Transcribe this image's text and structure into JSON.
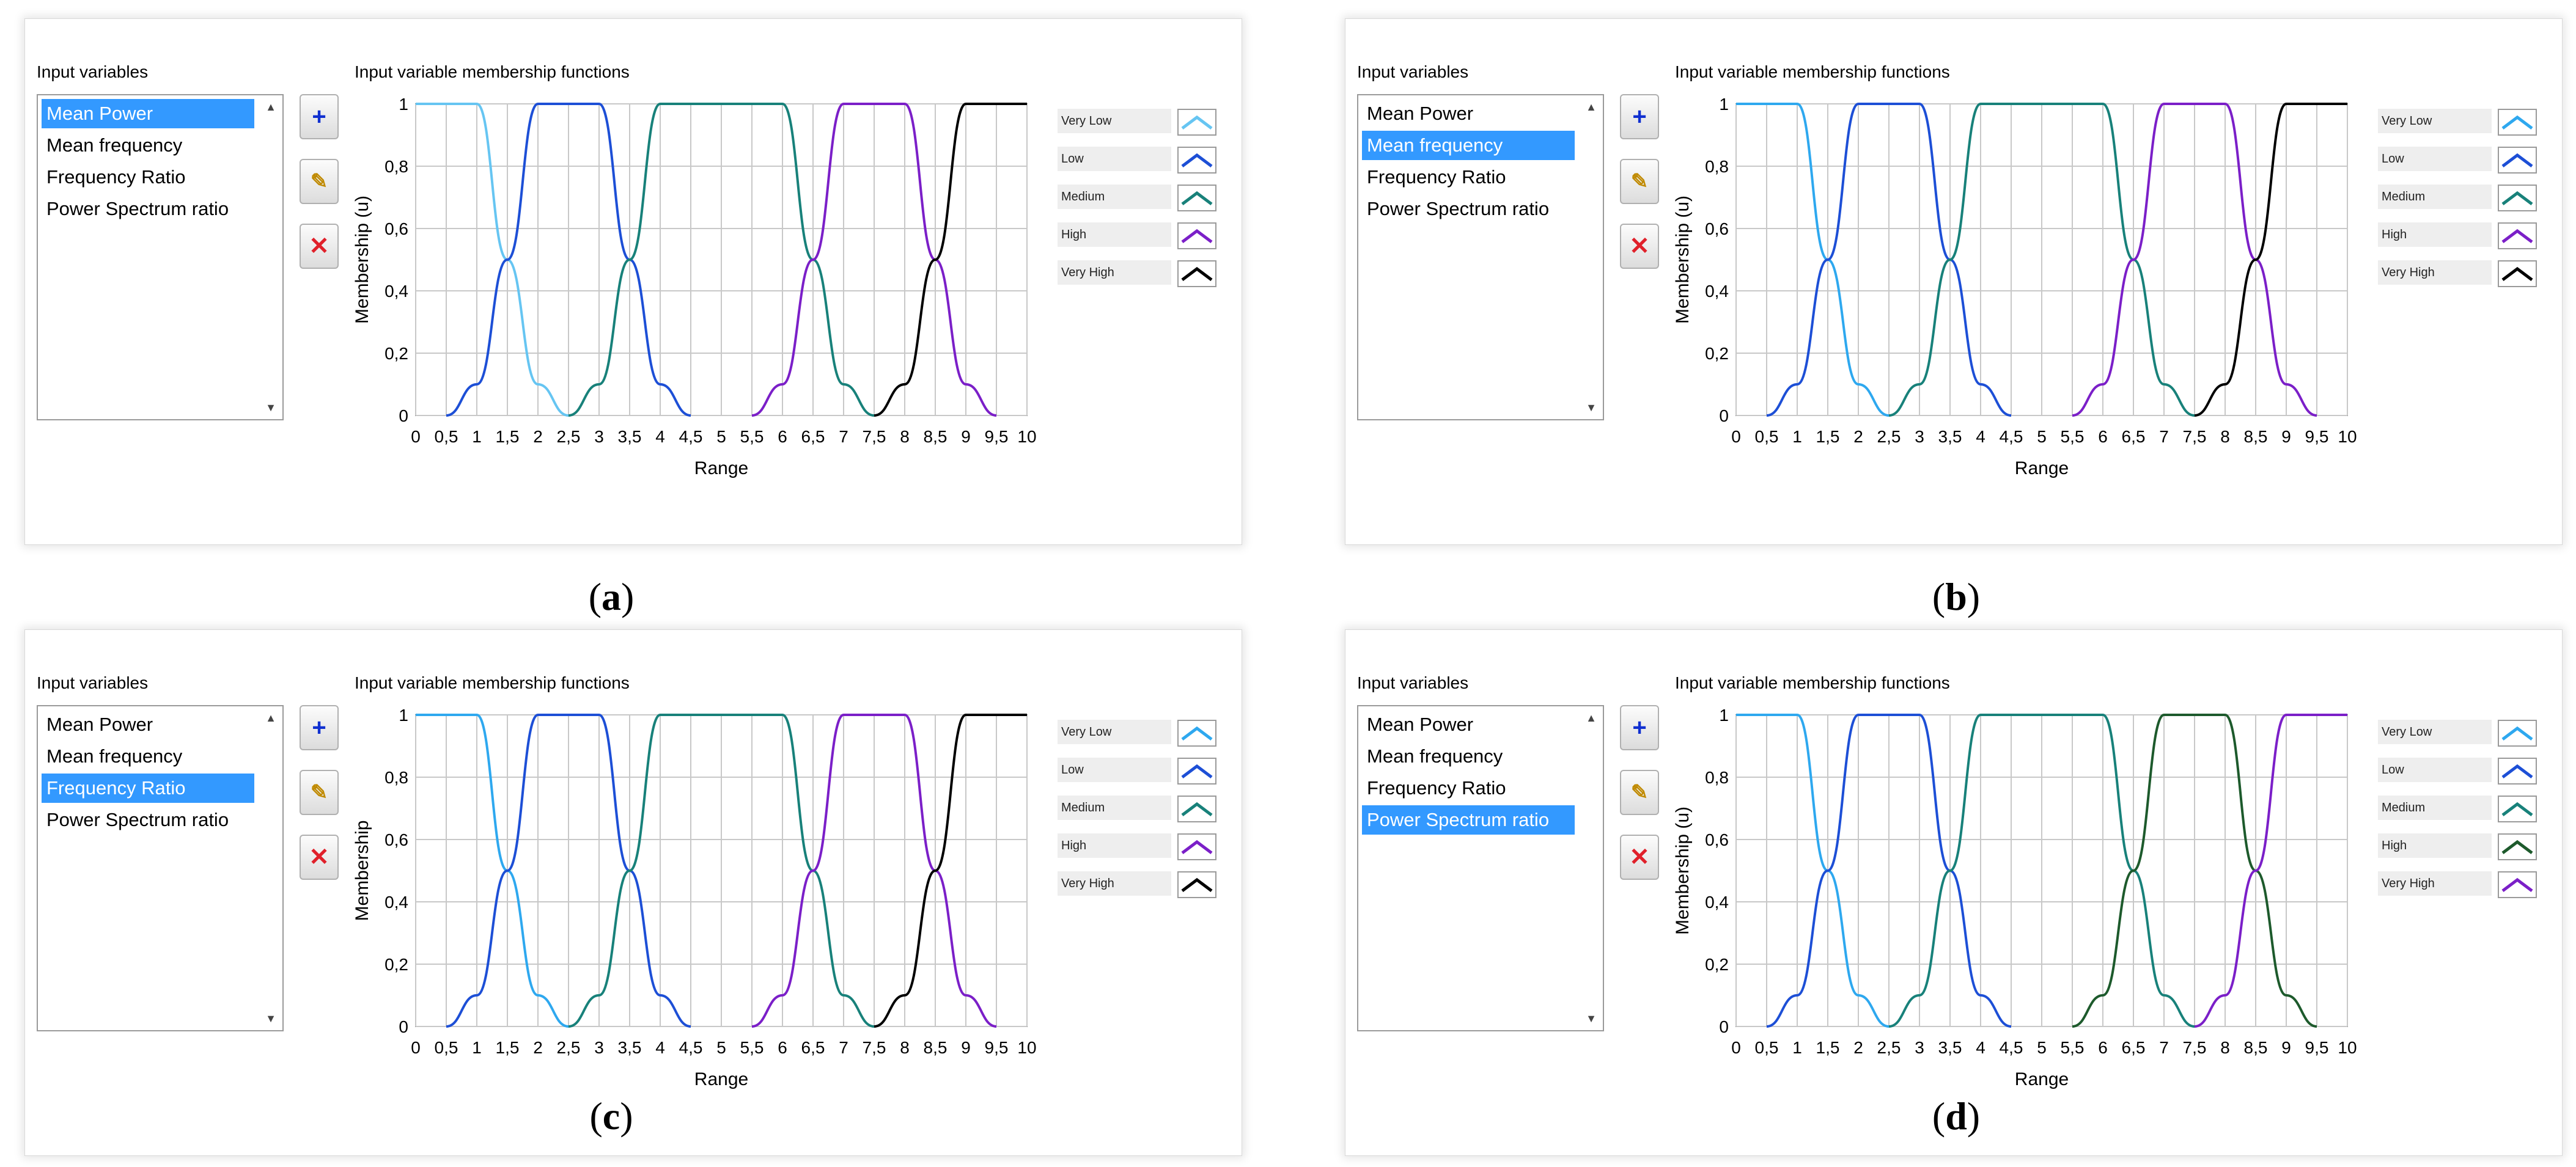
{
  "panels": [
    {
      "id": "a",
      "caption": "a",
      "list_label": "Input variables",
      "chart_title": "Input variable membership functions",
      "list_items": [
        "Mean Power",
        "Mean frequency",
        "Frequency Ratio",
        "Power Spectrum ratio"
      ],
      "selected_index": 0,
      "add_button": "+",
      "edit_button": "✎",
      "delete_button": "✕",
      "legend": [
        {
          "label": "Very Low",
          "color": "#66c5f2"
        },
        {
          "label": "Low",
          "color": "#1d4fd6"
        },
        {
          "label": "Medium",
          "color": "#18817a"
        },
        {
          "label": "High",
          "color": "#7b1fc8"
        },
        {
          "label": "Very High",
          "color": "#000000"
        }
      ]
    },
    {
      "id": "b",
      "caption": "b",
      "list_label": "Input variables",
      "chart_title": "Input variable membership functions",
      "list_items": [
        "Mean Power",
        "Mean frequency",
        "Frequency Ratio",
        "Power Spectrum ratio"
      ],
      "selected_index": 1,
      "add_button": "+",
      "edit_button": "✎",
      "delete_button": "✕",
      "legend": [
        {
          "label": "Very Low",
          "color": "#2ea8ef"
        },
        {
          "label": "Low",
          "color": "#1d4fd6"
        },
        {
          "label": "Medium",
          "color": "#18817a"
        },
        {
          "label": "High",
          "color": "#7b1fc8"
        },
        {
          "label": "Very High",
          "color": "#000000"
        }
      ]
    },
    {
      "id": "c",
      "caption": "c",
      "list_label": "Input variables",
      "chart_title": "Input variable membership functions",
      "list_items": [
        "Mean Power",
        "Mean frequency",
        "Frequency Ratio",
        "Power Spectrum ratio"
      ],
      "selected_index": 2,
      "add_button": "+",
      "edit_button": "✎",
      "delete_button": "✕",
      "legend": [
        {
          "label": "Very Low",
          "color": "#2ea8ef"
        },
        {
          "label": "Low",
          "color": "#1d4fd6"
        },
        {
          "label": "Medium",
          "color": "#18817a"
        },
        {
          "label": "High",
          "color": "#7b1fc8"
        },
        {
          "label": "Very High",
          "color": "#000000"
        }
      ]
    },
    {
      "id": "d",
      "caption": "d",
      "list_label": "Input variables",
      "chart_title": "Input variable membership functions",
      "list_items": [
        "Mean Power",
        "Mean frequency",
        "Frequency Ratio",
        "Power Spectrum ratio"
      ],
      "selected_index": 3,
      "add_button": "+",
      "edit_button": "✎",
      "delete_button": "✕",
      "legend": [
        {
          "label": "Very Low",
          "color": "#2ea8ef"
        },
        {
          "label": "Low",
          "color": "#1d4fd6"
        },
        {
          "label": "Medium",
          "color": "#18817a"
        },
        {
          "label": "High",
          "color": "#1d5a2c"
        },
        {
          "label": "Very High",
          "color": "#7b1fc8"
        }
      ]
    }
  ],
  "chart_data": [
    {
      "panel": "a",
      "type": "line",
      "title": "Input variable membership functions",
      "xlabel": "Range",
      "ylabel": "Membership (u)",
      "xlim": [
        0,
        10
      ],
      "ylim": [
        0,
        1
      ],
      "x_ticks": [
        "0",
        "0,5",
        "1",
        "1,5",
        "2",
        "2,5",
        "3",
        "3,5",
        "4",
        "4,5",
        "5",
        "5,5",
        "6",
        "6,5",
        "7",
        "7,5",
        "8",
        "8,5",
        "9",
        "9,5",
        "10"
      ],
      "y_ticks": [
        "0",
        "0,2",
        "0,4",
        "0,6",
        "0,8",
        "1"
      ],
      "grid": true,
      "series": [
        {
          "name": "Very Low",
          "color": "#66c5f2",
          "points": [
            [
              0,
              1
            ],
            [
              1,
              1
            ],
            [
              1.5,
              0.5
            ],
            [
              2,
              0.1
            ],
            [
              2.5,
              0
            ]
          ]
        },
        {
          "name": "Low",
          "color": "#1d4fd6",
          "points": [
            [
              0.5,
              0
            ],
            [
              1,
              0.1
            ],
            [
              1.5,
              0.5
            ],
            [
              2,
              1
            ],
            [
              3,
              1
            ],
            [
              3.5,
              0.5
            ],
            [
              4,
              0.1
            ],
            [
              4.5,
              0
            ]
          ]
        },
        {
          "name": "Medium",
          "color": "#18817a",
          "points": [
            [
              2.5,
              0
            ],
            [
              3,
              0.1
            ],
            [
              3.5,
              0.5
            ],
            [
              4,
              1
            ],
            [
              6,
              1
            ],
            [
              6.5,
              0.5
            ],
            [
              7,
              0.1
            ],
            [
              7.5,
              0
            ]
          ]
        },
        {
          "name": "High",
          "color": "#7b1fc8",
          "points": [
            [
              5.5,
              0
            ],
            [
              6,
              0.1
            ],
            [
              6.5,
              0.5
            ],
            [
              7,
              1
            ],
            [
              8,
              1
            ],
            [
              8.5,
              0.5
            ],
            [
              9,
              0.1
            ],
            [
              9.5,
              0
            ]
          ]
        },
        {
          "name": "Very High",
          "color": "#000000",
          "points": [
            [
              7.5,
              0
            ],
            [
              8,
              0.1
            ],
            [
              8.5,
              0.5
            ],
            [
              9,
              1
            ],
            [
              10,
              1
            ]
          ]
        }
      ]
    },
    {
      "panel": "b",
      "type": "line",
      "title": "Input variable membership functions",
      "xlabel": "Range",
      "ylabel": "Membership (u)",
      "xlim": [
        0,
        10
      ],
      "ylim": [
        0,
        1
      ],
      "x_ticks": [
        "0",
        "0,5",
        "1",
        "1,5",
        "2",
        "2,5",
        "3",
        "3,5",
        "4",
        "4,5",
        "5",
        "5,5",
        "6",
        "6,5",
        "7",
        "7,5",
        "8",
        "8,5",
        "9",
        "9,5",
        "10"
      ],
      "y_ticks": [
        "0",
        "0,2",
        "0,4",
        "0,6",
        "0,8",
        "1"
      ],
      "grid": true,
      "series": [
        {
          "name": "Very Low",
          "color": "#2ea8ef",
          "points": [
            [
              0,
              1
            ],
            [
              1,
              1
            ],
            [
              1.5,
              0.5
            ],
            [
              2,
              0.1
            ],
            [
              2.5,
              0
            ]
          ]
        },
        {
          "name": "Low",
          "color": "#1d4fd6",
          "points": [
            [
              0.5,
              0
            ],
            [
              1,
              0.1
            ],
            [
              1.5,
              0.5
            ],
            [
              2,
              1
            ],
            [
              3,
              1
            ],
            [
              3.5,
              0.5
            ],
            [
              4,
              0.1
            ],
            [
              4.5,
              0
            ]
          ]
        },
        {
          "name": "Medium",
          "color": "#18817a",
          "points": [
            [
              2.5,
              0
            ],
            [
              3,
              0.1
            ],
            [
              3.5,
              0.5
            ],
            [
              4,
              1
            ],
            [
              6,
              1
            ],
            [
              6.5,
              0.5
            ],
            [
              7,
              0.1
            ],
            [
              7.5,
              0
            ]
          ]
        },
        {
          "name": "High",
          "color": "#7b1fc8",
          "points": [
            [
              5.5,
              0
            ],
            [
              6,
              0.1
            ],
            [
              6.5,
              0.5
            ],
            [
              7,
              1
            ],
            [
              8,
              1
            ],
            [
              8.5,
              0.5
            ],
            [
              9,
              0.1
            ],
            [
              9.5,
              0
            ]
          ]
        },
        {
          "name": "Very High",
          "color": "#000000",
          "points": [
            [
              7.5,
              0
            ],
            [
              8,
              0.1
            ],
            [
              8.5,
              0.5
            ],
            [
              9,
              1
            ],
            [
              10,
              1
            ]
          ]
        }
      ]
    },
    {
      "panel": "c",
      "type": "line",
      "title": "Input variable membership functions",
      "xlabel": "Range",
      "ylabel": "Membership",
      "xlim": [
        0,
        10
      ],
      "ylim": [
        0,
        1
      ],
      "x_ticks": [
        "0",
        "0,5",
        "1",
        "1,5",
        "2",
        "2,5",
        "3",
        "3,5",
        "4",
        "4,5",
        "5",
        "5,5",
        "6",
        "6,5",
        "7",
        "7,5",
        "8",
        "8,5",
        "9",
        "9,5",
        "10"
      ],
      "y_ticks": [
        "0",
        "0,2",
        "0,4",
        "0,6",
        "0,8",
        "1"
      ],
      "grid": true,
      "series": [
        {
          "name": "Very Low",
          "color": "#2ea8ef",
          "points": [
            [
              0,
              1
            ],
            [
              1,
              1
            ],
            [
              1.5,
              0.5
            ],
            [
              2,
              0.1
            ],
            [
              2.5,
              0
            ]
          ]
        },
        {
          "name": "Low",
          "color": "#1d4fd6",
          "points": [
            [
              0.5,
              0
            ],
            [
              1,
              0.1
            ],
            [
              1.5,
              0.5
            ],
            [
              2,
              1
            ],
            [
              3,
              1
            ],
            [
              3.5,
              0.5
            ],
            [
              4,
              0.1
            ],
            [
              4.5,
              0
            ]
          ]
        },
        {
          "name": "Medium",
          "color": "#18817a",
          "points": [
            [
              2.5,
              0
            ],
            [
              3,
              0.1
            ],
            [
              3.5,
              0.5
            ],
            [
              4,
              1
            ],
            [
              6,
              1
            ],
            [
              6.5,
              0.5
            ],
            [
              7,
              0.1
            ],
            [
              7.5,
              0
            ]
          ]
        },
        {
          "name": "High",
          "color": "#7b1fc8",
          "points": [
            [
              5.5,
              0
            ],
            [
              6,
              0.1
            ],
            [
              6.5,
              0.5
            ],
            [
              7,
              1
            ],
            [
              8,
              1
            ],
            [
              8.5,
              0.5
            ],
            [
              9,
              0.1
            ],
            [
              9.5,
              0
            ]
          ]
        },
        {
          "name": "Very High",
          "color": "#000000",
          "points": [
            [
              7.5,
              0
            ],
            [
              8,
              0.1
            ],
            [
              8.5,
              0.5
            ],
            [
              9,
              1
            ],
            [
              10,
              1
            ]
          ]
        }
      ]
    },
    {
      "panel": "d",
      "type": "line",
      "title": "Input variable membership functions",
      "xlabel": "Range",
      "ylabel": "Membership (u)",
      "xlim": [
        0,
        10
      ],
      "ylim": [
        0,
        1
      ],
      "x_ticks": [
        "0",
        "0,5",
        "1",
        "1,5",
        "2",
        "2,5",
        "3",
        "3,5",
        "4",
        "4,5",
        "5",
        "5,5",
        "6",
        "6,5",
        "7",
        "7,5",
        "8",
        "8,5",
        "9",
        "9,5",
        "10"
      ],
      "y_ticks": [
        "0",
        "0,2",
        "0,4",
        "0,6",
        "0,8",
        "1"
      ],
      "grid": true,
      "series": [
        {
          "name": "Very Low",
          "color": "#2ea8ef",
          "points": [
            [
              0,
              1
            ],
            [
              1,
              1
            ],
            [
              1.5,
              0.5
            ],
            [
              2,
              0.1
            ],
            [
              2.5,
              0
            ]
          ]
        },
        {
          "name": "Low",
          "color": "#1d4fd6",
          "points": [
            [
              0.5,
              0
            ],
            [
              1,
              0.1
            ],
            [
              1.5,
              0.5
            ],
            [
              2,
              1
            ],
            [
              3,
              1
            ],
            [
              3.5,
              0.5
            ],
            [
              4,
              0.1
            ],
            [
              4.5,
              0
            ]
          ]
        },
        {
          "name": "Medium",
          "color": "#18817a",
          "points": [
            [
              2.5,
              0
            ],
            [
              3,
              0.1
            ],
            [
              3.5,
              0.5
            ],
            [
              4,
              1
            ],
            [
              6,
              1
            ],
            [
              6.5,
              0.5
            ],
            [
              7,
              0.1
            ],
            [
              7.5,
              0
            ]
          ]
        },
        {
          "name": "High",
          "color": "#1d5a2c",
          "points": [
            [
              5.5,
              0
            ],
            [
              6,
              0.1
            ],
            [
              6.5,
              0.5
            ],
            [
              7,
              1
            ],
            [
              8,
              1
            ],
            [
              8.5,
              0.5
            ],
            [
              9,
              0.1
            ],
            [
              9.5,
              0
            ]
          ]
        },
        {
          "name": "Very High",
          "color": "#7b1fc8",
          "points": [
            [
              7.5,
              0
            ],
            [
              8,
              0.1
            ],
            [
              8.5,
              0.5
            ],
            [
              9,
              1
            ],
            [
              10,
              1
            ]
          ]
        }
      ]
    }
  ]
}
